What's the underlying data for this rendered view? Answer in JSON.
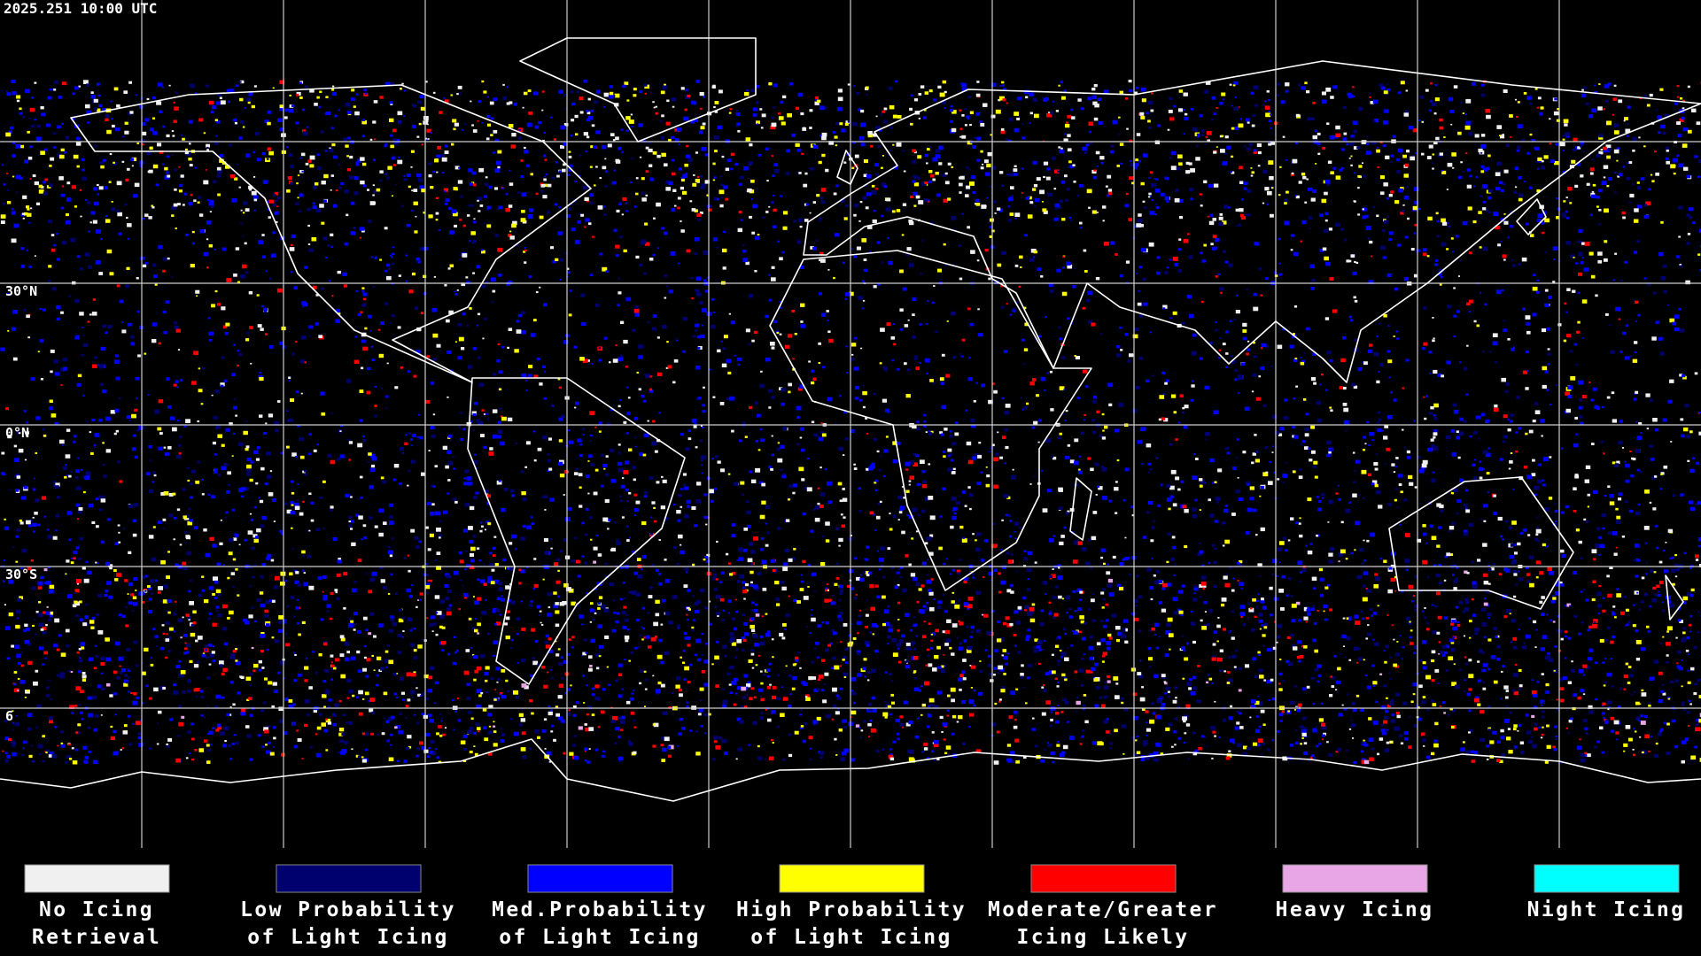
{
  "header": {
    "timestamp": "2025.251 10:00 UTC"
  },
  "map": {
    "lat_labels": [
      "30°N",
      "0°N",
      "30°S",
      "6"
    ]
  },
  "legend": [
    {
      "color": "#f0f0f0",
      "label": [
        "No Icing",
        "Retrieval"
      ]
    },
    {
      "color": "#00006e",
      "label": [
        "Low Probability",
        "of Light Icing"
      ]
    },
    {
      "color": "#0000ff",
      "label": [
        "Med.Probability",
        "of Light Icing"
      ]
    },
    {
      "color": "#ffff00",
      "label": [
        "High Probability",
        "of Light Icing"
      ]
    },
    {
      "color": "#ff0000",
      "label": [
        "Moderate/Greater",
        "Icing Likely"
      ]
    },
    {
      "color": "#e8a6e6",
      "label": [
        "Heavy Icing"
      ]
    },
    {
      "color": "#00ffff",
      "label": [
        "Night Icing"
      ]
    }
  ]
}
